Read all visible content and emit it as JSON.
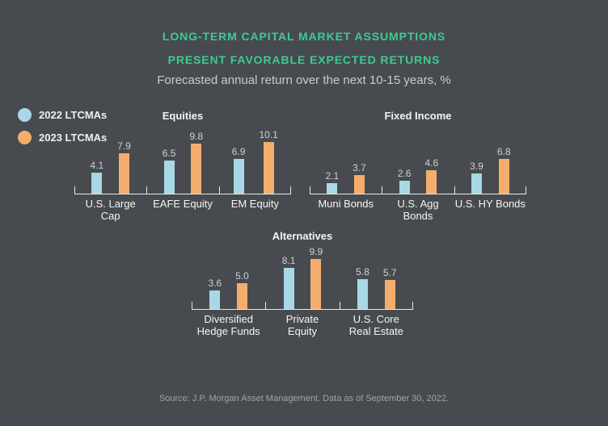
{
  "header": {
    "line1": "LONG-TERM CAPITAL MARKET ASSUMPTIONS",
    "line2": "PRESENT FAVORABLE EXPECTED RETURNS",
    "subtitle": "Forecasted annual return over the next 10-15 years, %"
  },
  "legend": [
    {
      "label": "2022 LTCMAs",
      "color": "#a8d8e5"
    },
    {
      "label": "2023 LTCMAs",
      "color": "#f4ad6c"
    }
  ],
  "colors": {
    "background": "#474b4f",
    "title_green": "#3fca92",
    "bar_2022": "#a8d8e5",
    "bar_2023": "#f4ad6c",
    "axis": "#e8e9e9",
    "value_label": "#ced1d2",
    "category_label": "#f4f5f6",
    "source_text": "#9fa3a5"
  },
  "chart_data": [
    {
      "type": "bar",
      "title": "Equities",
      "categories": [
        "U.S. Large Cap",
        "EAFE Equity",
        "EM Equity"
      ],
      "series": [
        {
          "name": "2022 LTCMAs",
          "values": [
            4.1,
            6.5,
            6.9
          ]
        },
        {
          "name": "2023 LTCMAs",
          "values": [
            7.9,
            9.8,
            10.1
          ]
        }
      ],
      "ylabel": "Forecasted annual return, %",
      "ylim": [
        0,
        11
      ],
      "grid": false,
      "legend_position": "top-left",
      "data_labels": true
    },
    {
      "type": "bar",
      "title": "Fixed Income",
      "categories": [
        "Muni Bonds",
        "U.S. Agg Bonds",
        "U.S. HY Bonds"
      ],
      "series": [
        {
          "name": "2022 LTCMAs",
          "values": [
            2.1,
            2.6,
            3.9
          ]
        },
        {
          "name": "2023 LTCMAs",
          "values": [
            3.7,
            4.6,
            6.8
          ]
        }
      ],
      "ylabel": "Forecasted annual return, %",
      "ylim": [
        0,
        11
      ],
      "grid": false,
      "data_labels": true
    },
    {
      "type": "bar",
      "title": "Alternatives",
      "categories": [
        "Diversified\nHedge Funds",
        "Private\nEquity",
        "U.S. Core\nReal Estate"
      ],
      "series": [
        {
          "name": "2022 LTCMAs",
          "values": [
            3.6,
            8.1,
            5.8
          ]
        },
        {
          "name": "2023 LTCMAs",
          "values": [
            5.0,
            9.9,
            5.7
          ]
        }
      ],
      "ylabel": "Forecasted annual return, %",
      "ylim": [
        0,
        11
      ],
      "grid": false,
      "data_labels": true
    }
  ],
  "source": {
    "text": "Source: J.P. Morgan Asset Management. Data as of September 30, 2022."
  }
}
